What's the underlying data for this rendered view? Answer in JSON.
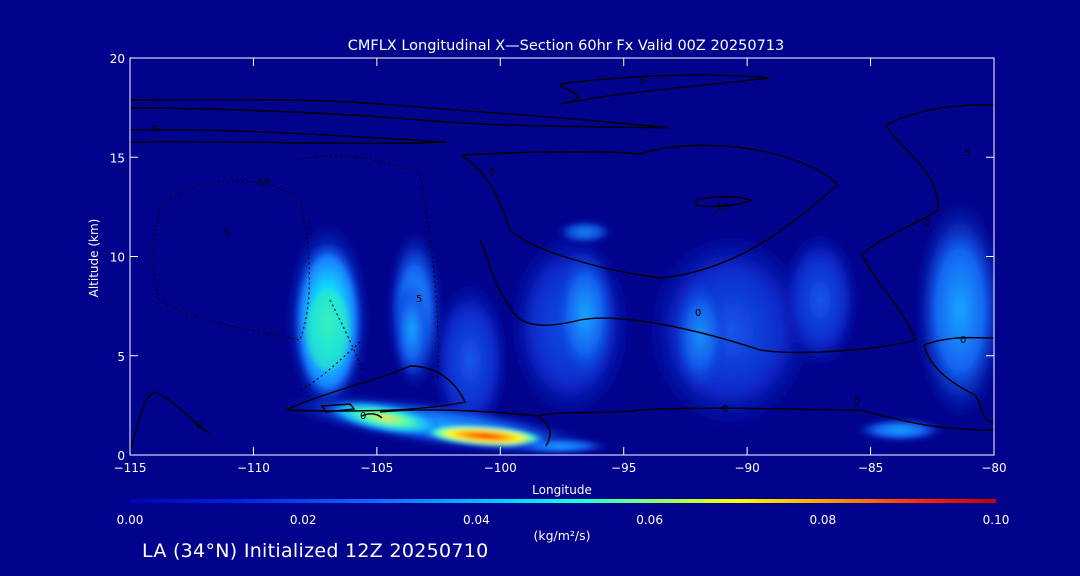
{
  "chart_data": {
    "type": "heatmap",
    "title": "CMFLX Longitudinal X—Section 60hr  Fx Valid 00Z 20250713",
    "xlabel": "Longitude",
    "ylabel": "Altitude (km)",
    "xlim": [
      -115,
      -80
    ],
    "ylim": [
      0,
      20
    ],
    "xticks": [
      -115,
      -110,
      -105,
      -100,
      -95,
      -90,
      -85,
      -80
    ],
    "xtick_labels": [
      "−115",
      "−110",
      "−105",
      "−100",
      "−95",
      "−90",
      "−85",
      "−80"
    ],
    "yticks": [
      0,
      5,
      10,
      15,
      20
    ],
    "ytick_labels": [
      "0",
      "5",
      "10",
      "15",
      "20"
    ],
    "colorbar": {
      "unit_label": "(kg/m²/s)",
      "ticks": [
        "0.00",
        "0.02",
        "0.04",
        "0.06",
        "0.08",
        "0.10"
      ],
      "range": [
        0,
        0.1
      ]
    },
    "contour_labels": [
      "0",
      "0",
      "0",
      "0",
      "0",
      "0",
      "0",
      "0",
      "0",
      "10",
      "10",
      "5",
      "5",
      "5",
      "0",
      "5"
    ],
    "flux_regions": [
      {
        "lon": -107.2,
        "alt": 6.2,
        "value": 0.042
      },
      {
        "lon": -103.6,
        "alt": 7.0,
        "value": 0.028
      },
      {
        "lon": -105.0,
        "alt": 2.0,
        "value": 0.048
      },
      {
        "lon": -100.5,
        "alt": 1.0,
        "value": 0.085
      },
      {
        "lon": -96.5,
        "alt": 7.0,
        "value": 0.022
      },
      {
        "lon": -92.0,
        "alt": 6.0,
        "value": 0.018
      },
      {
        "lon": -87.0,
        "alt": 6.0,
        "value": 0.012
      },
      {
        "lon": -81.0,
        "alt": 8.0,
        "value": 0.016
      }
    ]
  },
  "footer_text": "LA (34°N) Initialized 12Z 20250710"
}
